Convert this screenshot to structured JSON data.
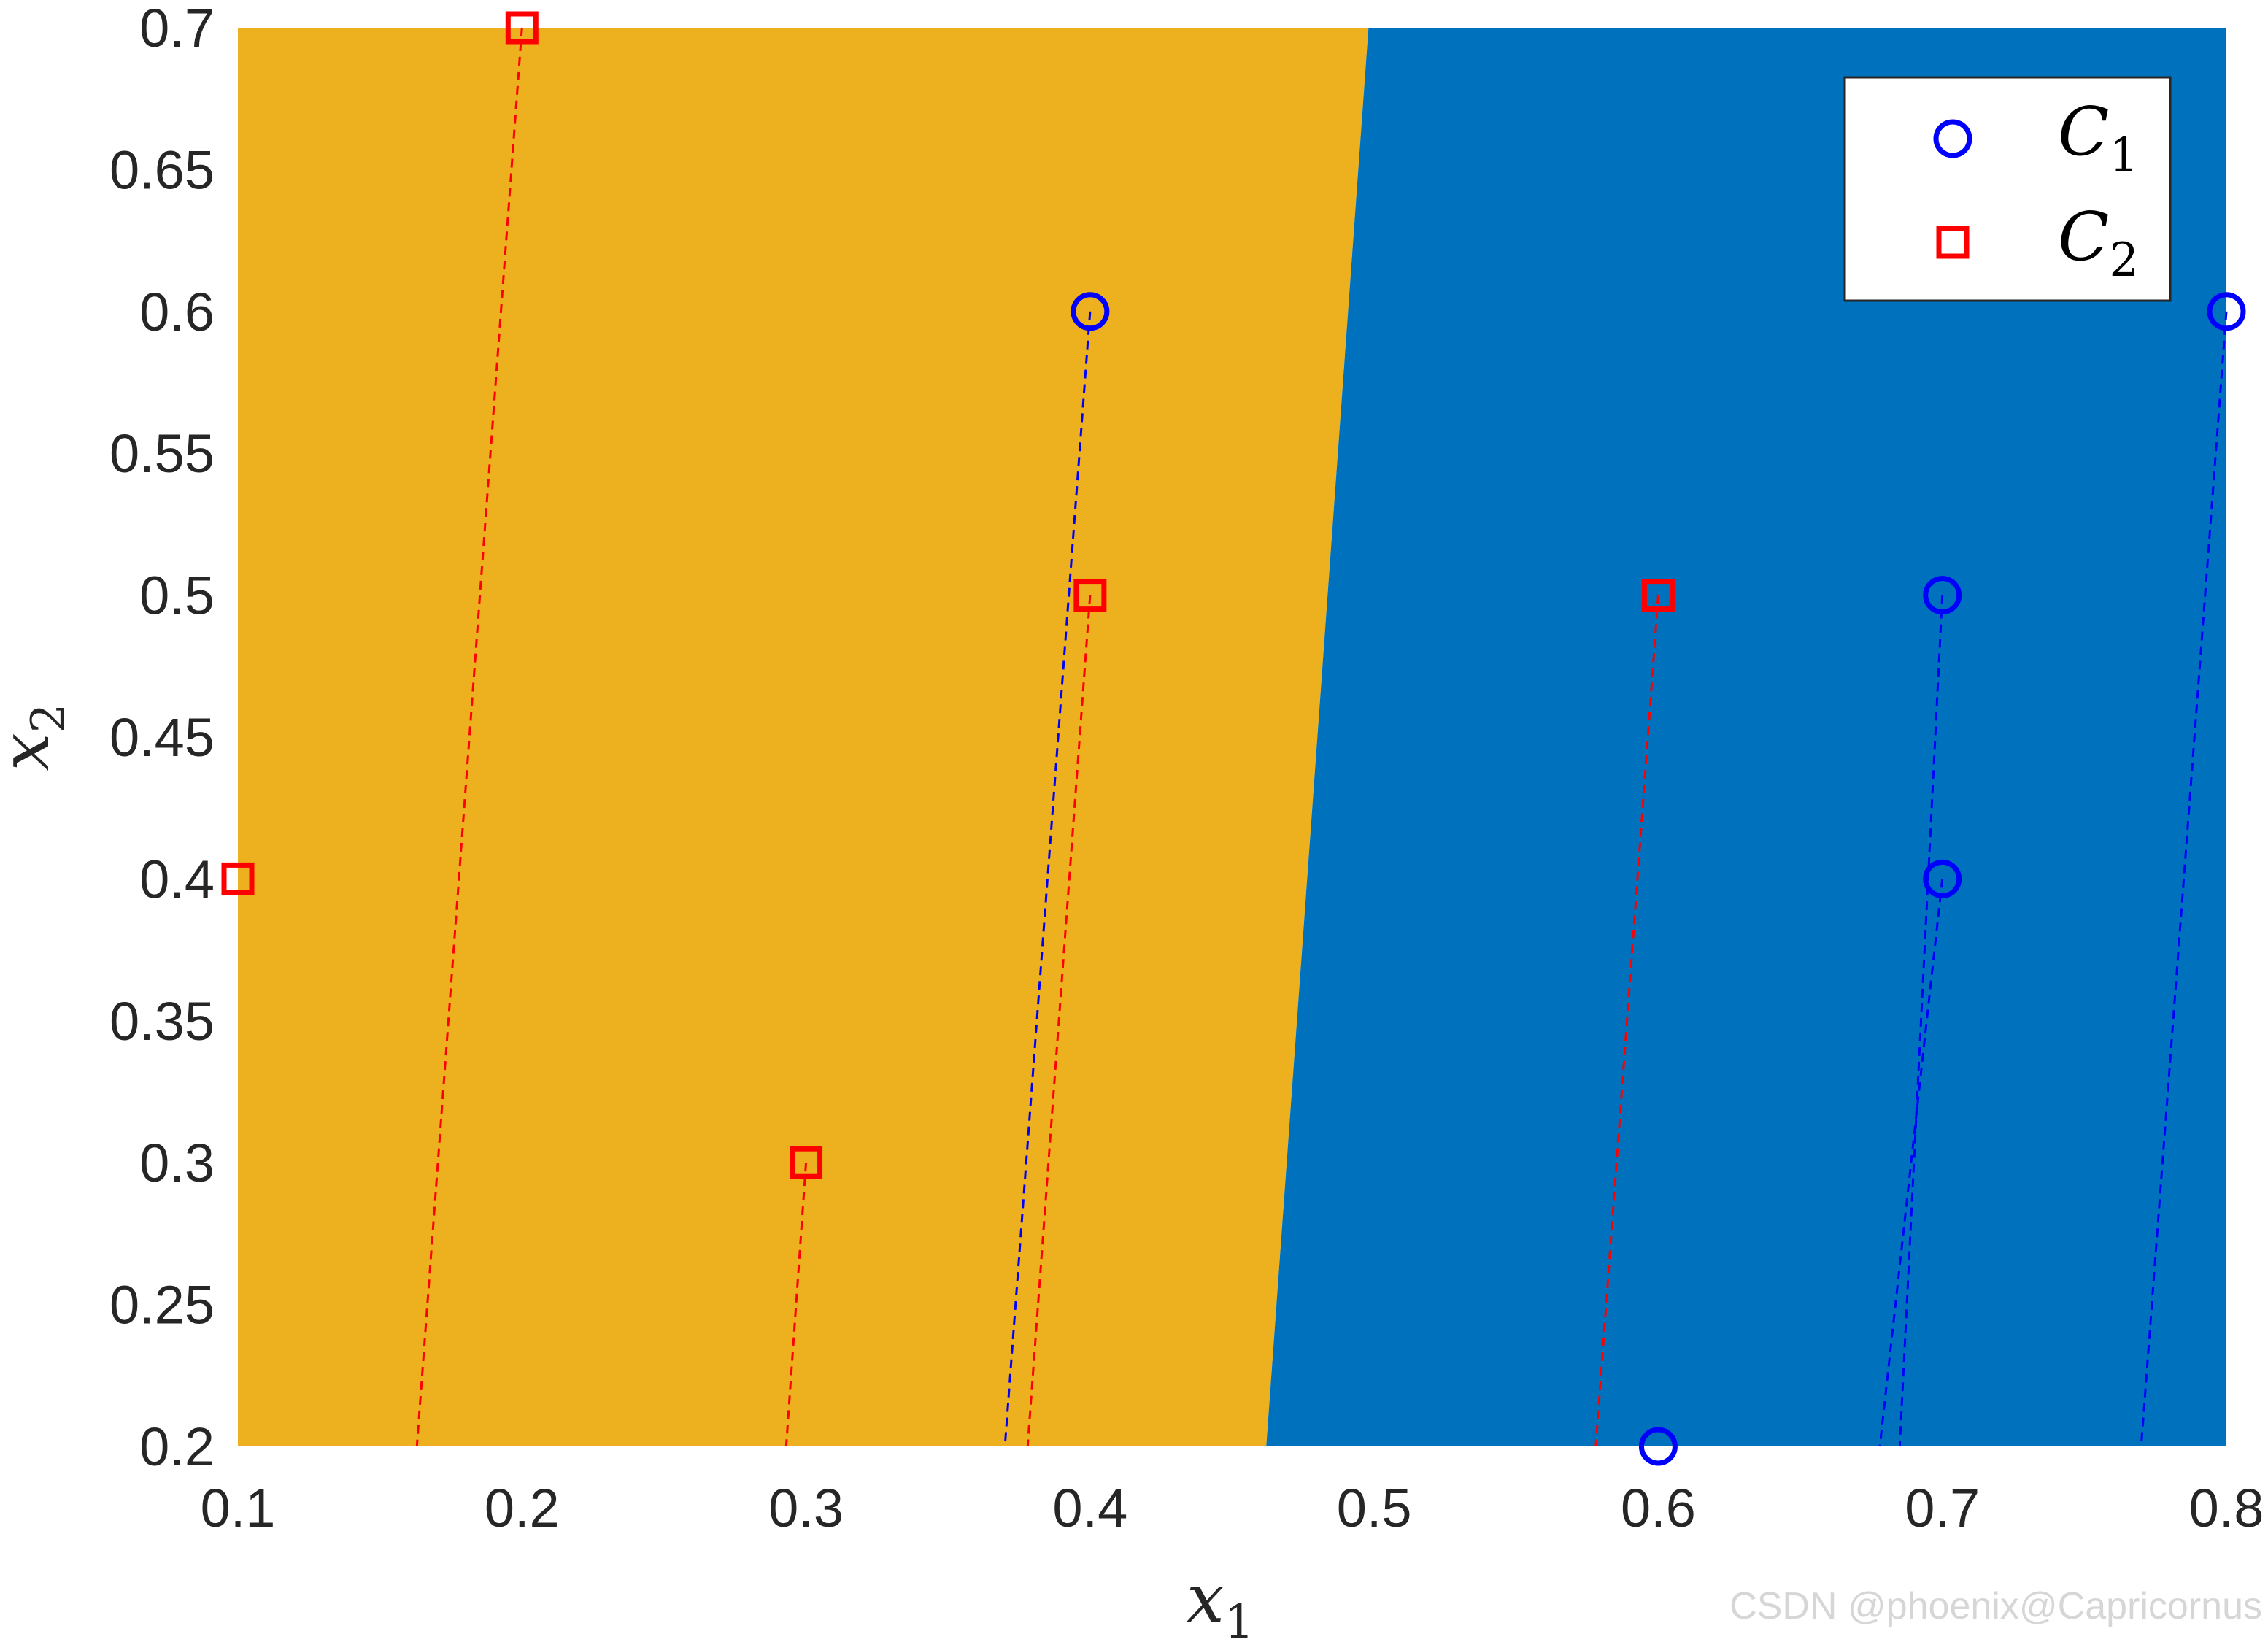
{
  "chart_data": {
    "type": "scatter",
    "xlabel": {
      "base": "x",
      "sub": "1"
    },
    "ylabel": {
      "base": "x",
      "sub": "2"
    },
    "xlim": [
      0.1,
      0.8
    ],
    "ylim": [
      0.2,
      0.7
    ],
    "xticks": [
      "0.1",
      "0.2",
      "0.3",
      "0.4",
      "0.5",
      "0.6",
      "0.7",
      "0.8"
    ],
    "yticks": [
      "0.2",
      "0.25",
      "0.3",
      "0.35",
      "0.4",
      "0.45",
      "0.5",
      "0.55",
      "0.6",
      "0.65",
      "0.7"
    ],
    "grid": false,
    "legend_position": "top-right",
    "regions": {
      "left_color": "#EDB120",
      "right_color": "#0072BD",
      "boundary": [
        [
          0.462,
          0.2
        ],
        [
          0.498,
          0.7
        ]
      ]
    },
    "series": [
      {
        "name": "C_1",
        "label": {
          "base": "C",
          "sub": "1"
        },
        "marker": "circle",
        "color": "#0000FF",
        "points": [
          [
            0.4,
            0.6
          ],
          [
            0.6,
            0.2
          ],
          [
            0.7,
            0.5
          ],
          [
            0.7,
            0.4
          ],
          [
            0.8,
            0.6
          ]
        ],
        "line_ends": [
          [
            0.37,
            0.2
          ],
          [
            0.6,
            0.2
          ],
          [
            0.685,
            0.2
          ],
          [
            0.678,
            0.2
          ],
          [
            0.77,
            0.2
          ]
        ]
      },
      {
        "name": "C_2",
        "label": {
          "base": "C",
          "sub": "2"
        },
        "marker": "square",
        "color": "#FF0000",
        "points": [
          [
            0.1,
            0.4
          ],
          [
            0.2,
            0.7
          ],
          [
            0.3,
            0.3
          ],
          [
            0.4,
            0.5
          ],
          [
            0.6,
            0.5
          ]
        ],
        "line_ends": [
          [
            0.1,
            0.4
          ],
          [
            0.163,
            0.2
          ],
          [
            0.293,
            0.2
          ],
          [
            0.378,
            0.2
          ],
          [
            0.578,
            0.2
          ]
        ]
      }
    ]
  },
  "watermark": "CSDN @phoenix@Capricornus"
}
